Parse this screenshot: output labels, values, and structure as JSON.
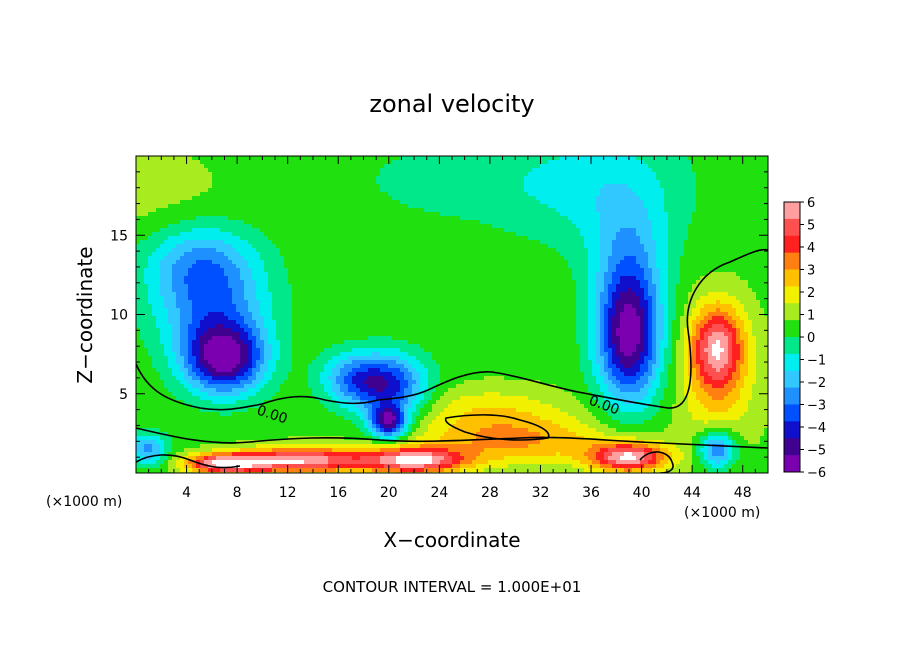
{
  "chart_data": {
    "type": "heatmap",
    "title": "zonal velocity",
    "xlabel": "X−coordinate",
    "ylabel": "Z−coordinate",
    "x_unit_left": "(×1000 m)",
    "x_unit_right": "(×1000 m)",
    "footnote": "CONTOUR INTERVAL = 1.000E+01",
    "xlim": [
      0,
      50
    ],
    "ylim": [
      0,
      20
    ],
    "x_ticks": [
      4,
      8,
      12,
      16,
      20,
      24,
      28,
      32,
      36,
      40,
      44,
      48
    ],
    "x_tick_labels": [
      "4",
      "8",
      "12",
      "16",
      "20",
      "24",
      "28",
      "32",
      "36",
      "40",
      "44",
      "48"
    ],
    "y_ticks": [
      5,
      10,
      15
    ],
    "y_tick_labels": [
      "5",
      "10",
      "15"
    ],
    "colorbar": {
      "ticks": [
        6,
        5,
        4,
        3,
        2,
        1,
        0,
        -1,
        -2,
        -3,
        -4,
        -5,
        -6
      ],
      "tick_labels": [
        "6",
        "5",
        "4",
        "3",
        "2",
        "1",
        "0",
        "−1",
        "−2",
        "−3",
        "−4",
        "−5",
        "−6"
      ],
      "colors": [
        "#ff9f9f",
        "#ff5050",
        "#ff2020",
        "#ff7f10",
        "#ffc000",
        "#f0f000",
        "#a8ec20",
        "#20e010",
        "#00e88a",
        "#00eeee",
        "#30c8ff",
        "#1e90ff",
        "#0050ff",
        "#1010cc",
        "#400090",
        "#7a00b0"
      ]
    },
    "contour_labels": [
      "0.00",
      "0.00"
    ],
    "base_value": 0.5,
    "features": [
      {
        "x": 7,
        "z": 7.2,
        "rx": 3.2,
        "rz": 2.2,
        "value": -6.0
      },
      {
        "x": 6,
        "z": 10.5,
        "rx": 4.5,
        "rz": 3.0,
        "value": -3.0
      },
      {
        "x": 5,
        "z": 13.5,
        "rx": 4.5,
        "rz": 2.5,
        "value": -2.5
      },
      {
        "x": 20,
        "z": 5.5,
        "rx": 3.0,
        "rz": 2.0,
        "value": -4.5
      },
      {
        "x": 20,
        "z": 3.2,
        "rx": 1.4,
        "rz": 1.0,
        "value": -5.5
      },
      {
        "x": 17,
        "z": 6.0,
        "rx": 2.5,
        "rz": 1.6,
        "value": -2.5
      },
      {
        "x": 39,
        "z": 8.5,
        "rx": 2.5,
        "rz": 4.0,
        "value": -6.0
      },
      {
        "x": 39,
        "z": 13.5,
        "rx": 3.0,
        "rz": 4.0,
        "value": -2.0
      },
      {
        "x": 37,
        "z": 18.0,
        "rx": 7.0,
        "rz": 4.0,
        "value": -1.4
      },
      {
        "x": 26,
        "z": 18.5,
        "rx": 10.0,
        "rz": 3.0,
        "value": -0.8
      },
      {
        "x": 46,
        "z": 8.0,
        "rx": 2.0,
        "rz": 2.5,
        "value": 4.0
      },
      {
        "x": 46,
        "z": 6.0,
        "rx": 3.0,
        "rz": 4.5,
        "value": 2.0
      },
      {
        "x": 28,
        "z": 4.0,
        "rx": 6.0,
        "rz": 1.5,
        "value": 1.5
      },
      {
        "x": 2,
        "z": 17.0,
        "rx": 6.0,
        "rz": 3.5,
        "value": 0.6
      },
      {
        "x": 13,
        "z": 0.8,
        "rx": 5.0,
        "rz": 0.8,
        "value": 5.5
      },
      {
        "x": 22,
        "z": 0.8,
        "rx": 4.0,
        "rz": 0.8,
        "value": 5.5
      },
      {
        "x": 7,
        "z": 0.6,
        "rx": 3.0,
        "rz": 0.6,
        "value": 5.5
      },
      {
        "x": 39,
        "z": 1.0,
        "rx": 3.0,
        "rz": 0.9,
        "value": 5.5
      },
      {
        "x": 30,
        "z": 2.0,
        "rx": 8.0,
        "rz": 1.5,
        "value": 2.5
      },
      {
        "x": 46,
        "z": 1.5,
        "rx": 1.5,
        "rz": 1.2,
        "value": -4.0
      },
      {
        "x": 1,
        "z": 1.5,
        "rx": 1.5,
        "rz": 1.0,
        "value": -3.0
      }
    ]
  }
}
